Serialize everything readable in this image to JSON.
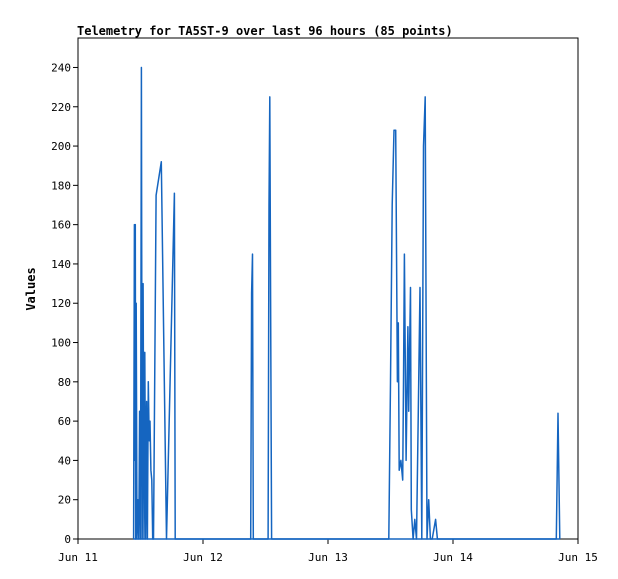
{
  "chart_data": {
    "type": "line",
    "title": "Telemetry for TA5ST-9 over last 96 hours (85 points)",
    "xlabel": "",
    "ylabel": "Values",
    "xlim": [
      "2024-06-11T00:00",
      "2024-06-15T00:00"
    ],
    "ylim": [
      0,
      255
    ],
    "x_ticks": [
      "Jun 11",
      "Jun 12",
      "Jun 13",
      "Jun 14",
      "Jun 15"
    ],
    "y_ticks": [
      0,
      20,
      40,
      60,
      80,
      100,
      120,
      140,
      160,
      180,
      200,
      220,
      240
    ],
    "grid": false,
    "line_color": "#1565c0",
    "series": [
      {
        "name": "",
        "x": [
          "2024-06-11T10:40",
          "2024-06-11T10:45",
          "2024-06-11T10:50",
          "2024-06-11T10:55",
          "2024-06-11T11:00",
          "2024-06-11T11:05",
          "2024-06-11T11:10",
          "2024-06-11T11:20",
          "2024-06-11T11:30",
          "2024-06-11T11:40",
          "2024-06-11T11:50",
          "2024-06-11T12:00",
          "2024-06-11T12:10",
          "2024-06-11T12:20",
          "2024-06-11T12:30",
          "2024-06-11T12:40",
          "2024-06-11T12:50",
          "2024-06-11T13:00",
          "2024-06-11T13:10",
          "2024-06-11T13:20",
          "2024-06-11T13:30",
          "2024-06-11T13:40",
          "2024-06-11T13:50",
          "2024-06-11T14:00",
          "2024-06-11T14:10",
          "2024-06-11T14:20",
          "2024-06-11T14:30",
          "2024-06-11T15:00",
          "2024-06-11T16:00",
          "2024-06-11T17:00",
          "2024-06-11T18:30",
          "2024-06-11T18:40",
          "2024-06-11T18:50",
          "2024-06-11T19:00",
          "2024-06-11T19:10",
          "2024-06-11T20:30",
          "2024-06-12T09:00",
          "2024-06-12T09:10",
          "2024-06-12T09:20",
          "2024-06-12T09:30",
          "2024-06-12T09:40",
          "2024-06-12T12:30",
          "2024-06-12T12:40",
          "2024-06-12T12:50",
          "2024-06-12T13:00",
          "2024-06-12T13:10",
          "2024-06-13T11:00",
          "2024-06-13T11:40",
          "2024-06-13T12:00",
          "2024-06-13T12:20",
          "2024-06-13T12:40",
          "2024-06-13T13:00",
          "2024-06-13T13:20",
          "2024-06-13T13:30",
          "2024-06-13T13:40",
          "2024-06-13T14:00",
          "2024-06-13T14:20",
          "2024-06-13T14:30",
          "2024-06-13T14:40",
          "2024-06-13T15:00",
          "2024-06-13T15:20",
          "2024-06-13T15:30",
          "2024-06-13T15:50",
          "2024-06-13T16:00",
          "2024-06-13T16:20",
          "2024-06-13T16:40",
          "2024-06-13T17:00",
          "2024-06-13T17:20",
          "2024-06-13T17:40",
          "2024-06-13T18:00",
          "2024-06-13T18:20",
          "2024-06-13T18:40",
          "2024-06-13T19:00",
          "2024-06-13T19:20",
          "2024-06-13T19:40",
          "2024-06-13T20:00",
          "2024-06-13T20:40",
          "2024-06-13T21:00",
          "2024-06-13T21:20",
          "2024-06-13T21:40",
          "2024-06-13T22:00",
          "2024-06-13T22:20",
          "2024-06-14T19:50",
          "2024-06-14T20:10",
          "2024-06-14T20:30"
        ],
        "y": [
          0,
          80,
          160,
          40,
          160,
          0,
          120,
          0,
          20,
          0,
          65,
          0,
          240,
          0,
          130,
          0,
          95,
          0,
          70,
          0,
          80,
          50,
          60,
          35,
          30,
          0,
          0,
          175,
          192,
          0,
          176,
          0,
          0,
          0,
          0,
          0,
          0,
          0,
          125,
          145,
          0,
          0,
          170,
          225,
          110,
          0,
          0,
          0,
          80,
          170,
          208,
          208,
          80,
          110,
          35,
          40,
          30,
          80,
          145,
          40,
          108,
          65,
          128,
          15,
          0,
          10,
          0,
          65,
          128,
          0,
          200,
          225,
          0,
          20,
          0,
          0,
          10,
          0,
          0,
          0,
          0,
          0,
          0,
          64,
          0
        ]
      }
    ]
  }
}
